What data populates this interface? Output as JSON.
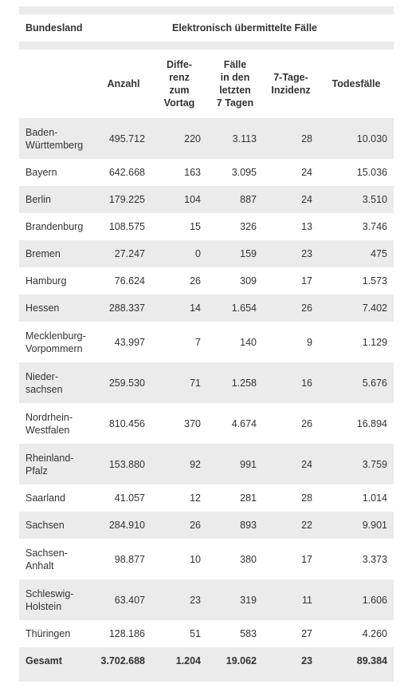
{
  "header": {
    "bundesland": "Bundesland",
    "group_title": "Elektronisch übermittelte Fälle"
  },
  "columns": [
    "Anzahl",
    "Diffe-\nrenz\nzum\nVortag",
    "Fälle\nin den\nletzten\n7 Tagen",
    "7-Tage-\nInzidenz",
    "Todesfälle"
  ],
  "rows": [
    [
      "Baden-\nWürttemberg",
      "495.712",
      "220",
      "3.113",
      "28",
      "10.030"
    ],
    [
      "Bayern",
      "642.668",
      "163",
      "3.095",
      "24",
      "15.036"
    ],
    [
      "Berlin",
      "179.225",
      "104",
      "887",
      "24",
      "3.510"
    ],
    [
      "Brandenburg",
      "108.575",
      "15",
      "326",
      "13",
      "3.746"
    ],
    [
      "Bremen",
      "27.247",
      "0",
      "159",
      "23",
      "475"
    ],
    [
      "Hamburg",
      "76.624",
      "26",
      "309",
      "17",
      "1.573"
    ],
    [
      "Hessen",
      "288.337",
      "14",
      "1.654",
      "26",
      "7.402"
    ],
    [
      "Mecklenburg-\nVorpommern",
      "43.997",
      "7",
      "140",
      "9",
      "1.129"
    ],
    [
      "Nieder-\nsachsen",
      "259.530",
      "71",
      "1.258",
      "16",
      "5.676"
    ],
    [
      "Nordrhein-\nWestfalen",
      "810.456",
      "370",
      "4.674",
      "26",
      "16.894"
    ],
    [
      "Rheinland-\nPfalz",
      "153.880",
      "92",
      "991",
      "24",
      "3.759"
    ],
    [
      "Saarland",
      "41.057",
      "12",
      "281",
      "28",
      "1.014"
    ],
    [
      "Sachsen",
      "284.910",
      "26",
      "893",
      "22",
      "9.901"
    ],
    [
      "Sachsen-\nAnhalt",
      "98.877",
      "10",
      "380",
      "17",
      "3.373"
    ],
    [
      "Schleswig-\nHolstein",
      "63.407",
      "23",
      "319",
      "11",
      "1.606"
    ],
    [
      "Thüringen",
      "128.186",
      "51",
      "583",
      "27",
      "4.260"
    ]
  ],
  "total": [
    "Gesamt",
    "3.702.688",
    "1.204",
    "19.062",
    "23",
    "89.384"
  ]
}
